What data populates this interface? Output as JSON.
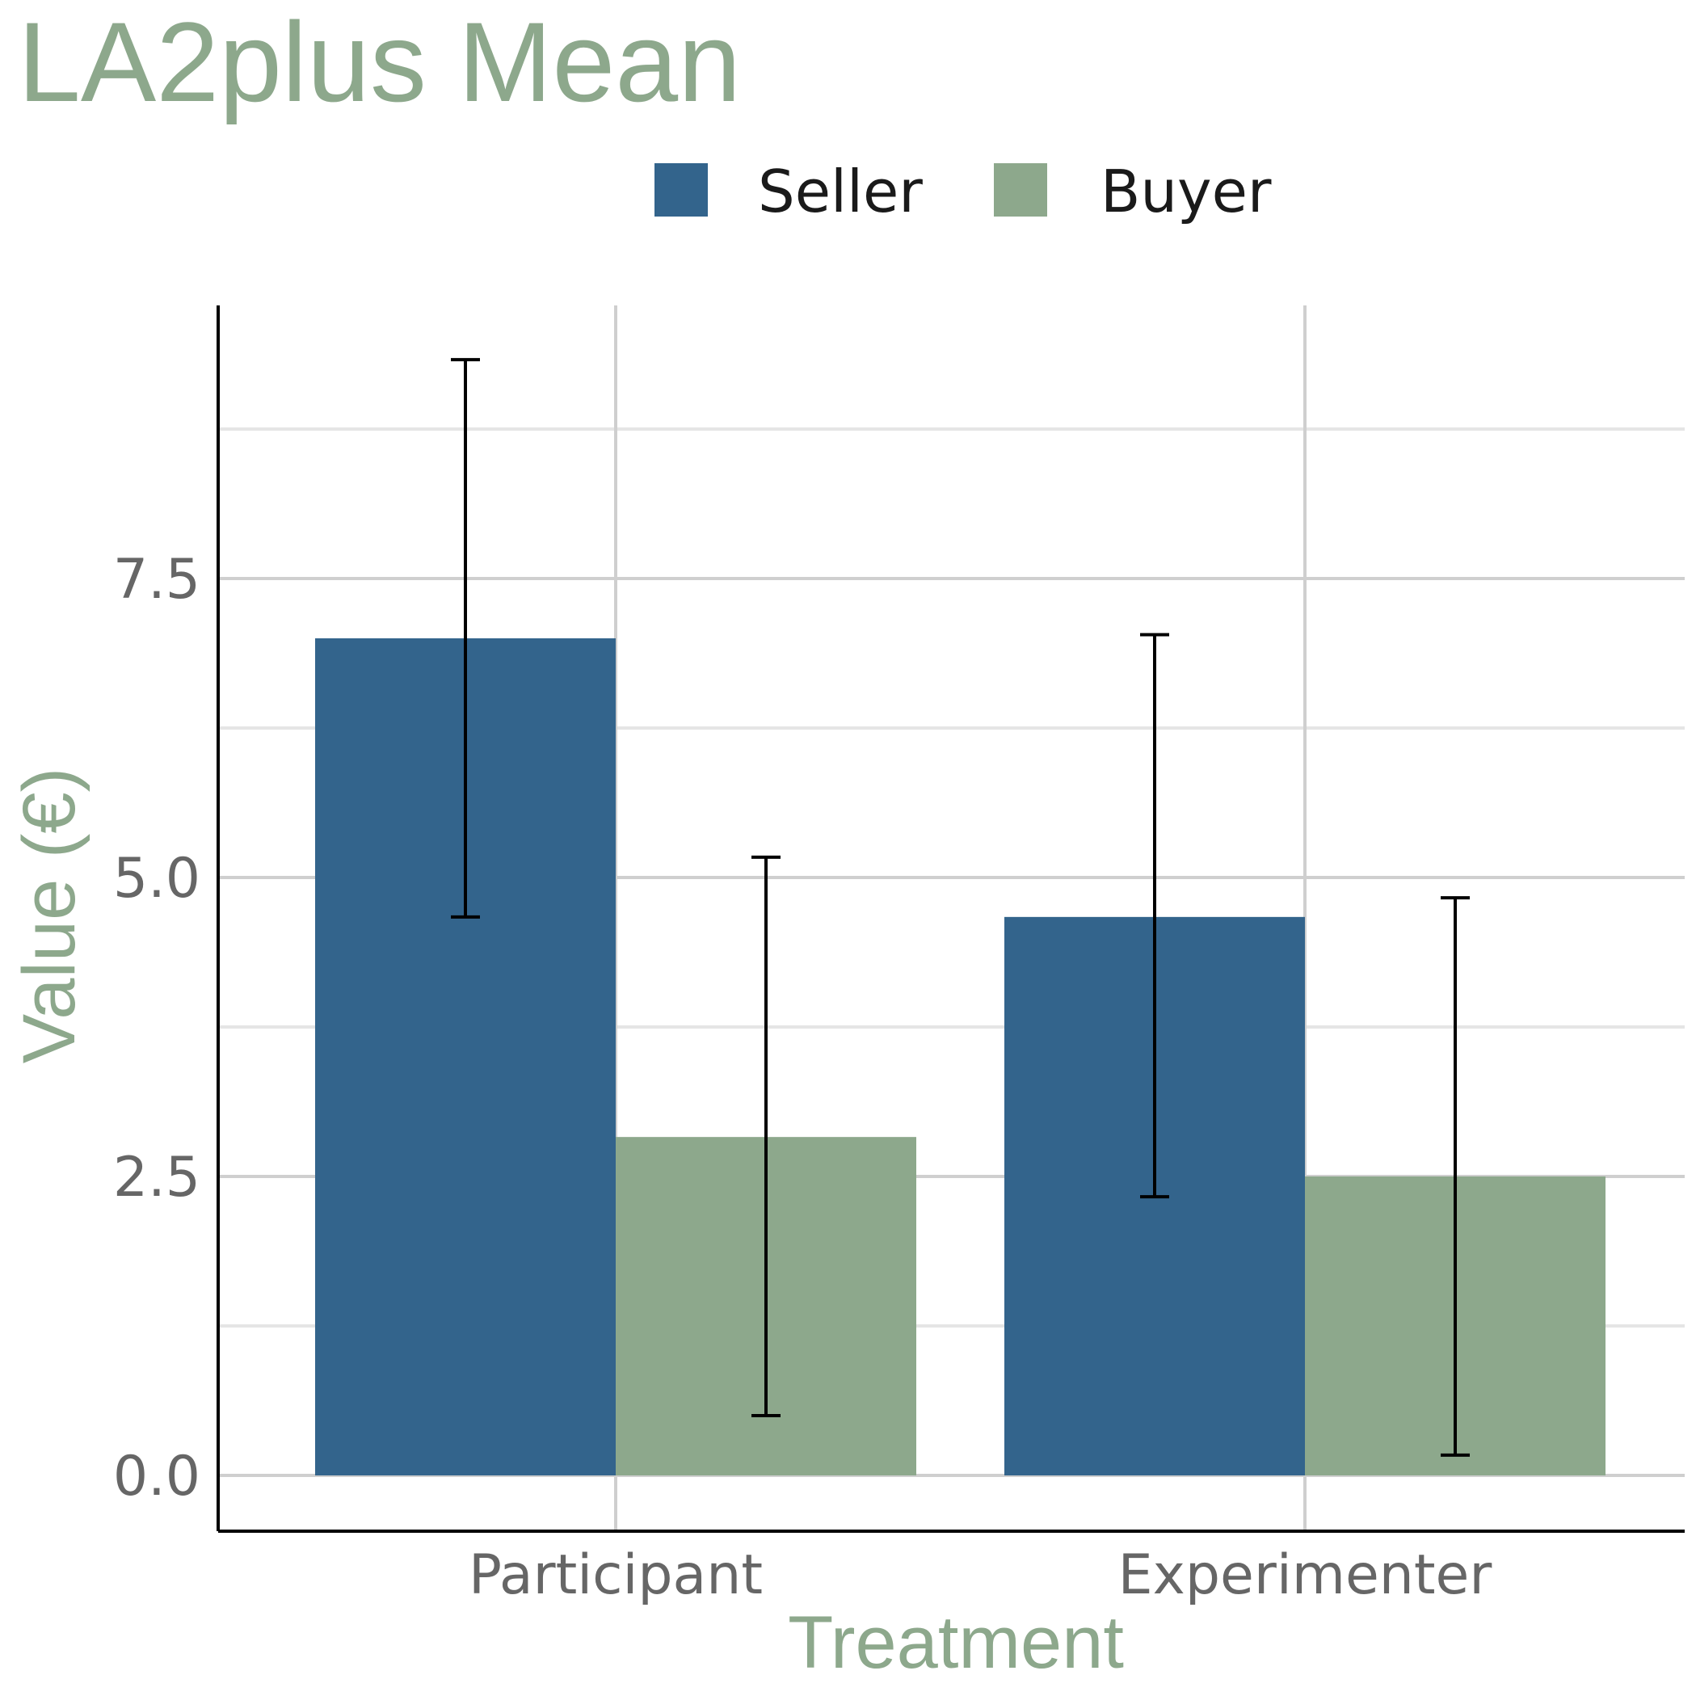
{
  "chart_data": {
    "type": "bar",
    "title": "LA2plus Mean",
    "xlabel": "Treatment",
    "ylabel": "Value (€)",
    "categories": [
      "Participant",
      "Experimenter"
    ],
    "series": [
      {
        "name": "Seller",
        "values": [
          7.0,
          4.67
        ],
        "error_low": [
          4.67,
          2.33
        ],
        "error_high": [
          9.33,
          7.03
        ]
      },
      {
        "name": "Buyer",
        "values": [
          2.83,
          2.5
        ],
        "error_low": [
          0.5,
          0.17
        ],
        "error_high": [
          5.17,
          4.83
        ]
      }
    ],
    "ylim": [
      -0.45,
      9.8
    ],
    "yticks": [
      0.0,
      2.5,
      5.0,
      7.5
    ],
    "ytick_labels": [
      "0.0",
      "2.5",
      "5.0",
      "7.5"
    ],
    "grid": true,
    "legend_position": "top"
  },
  "colors": {
    "seller": "#33648c",
    "buyer": "#8da88c",
    "accent_text": "#8da88c",
    "tick_text": "#666666"
  }
}
